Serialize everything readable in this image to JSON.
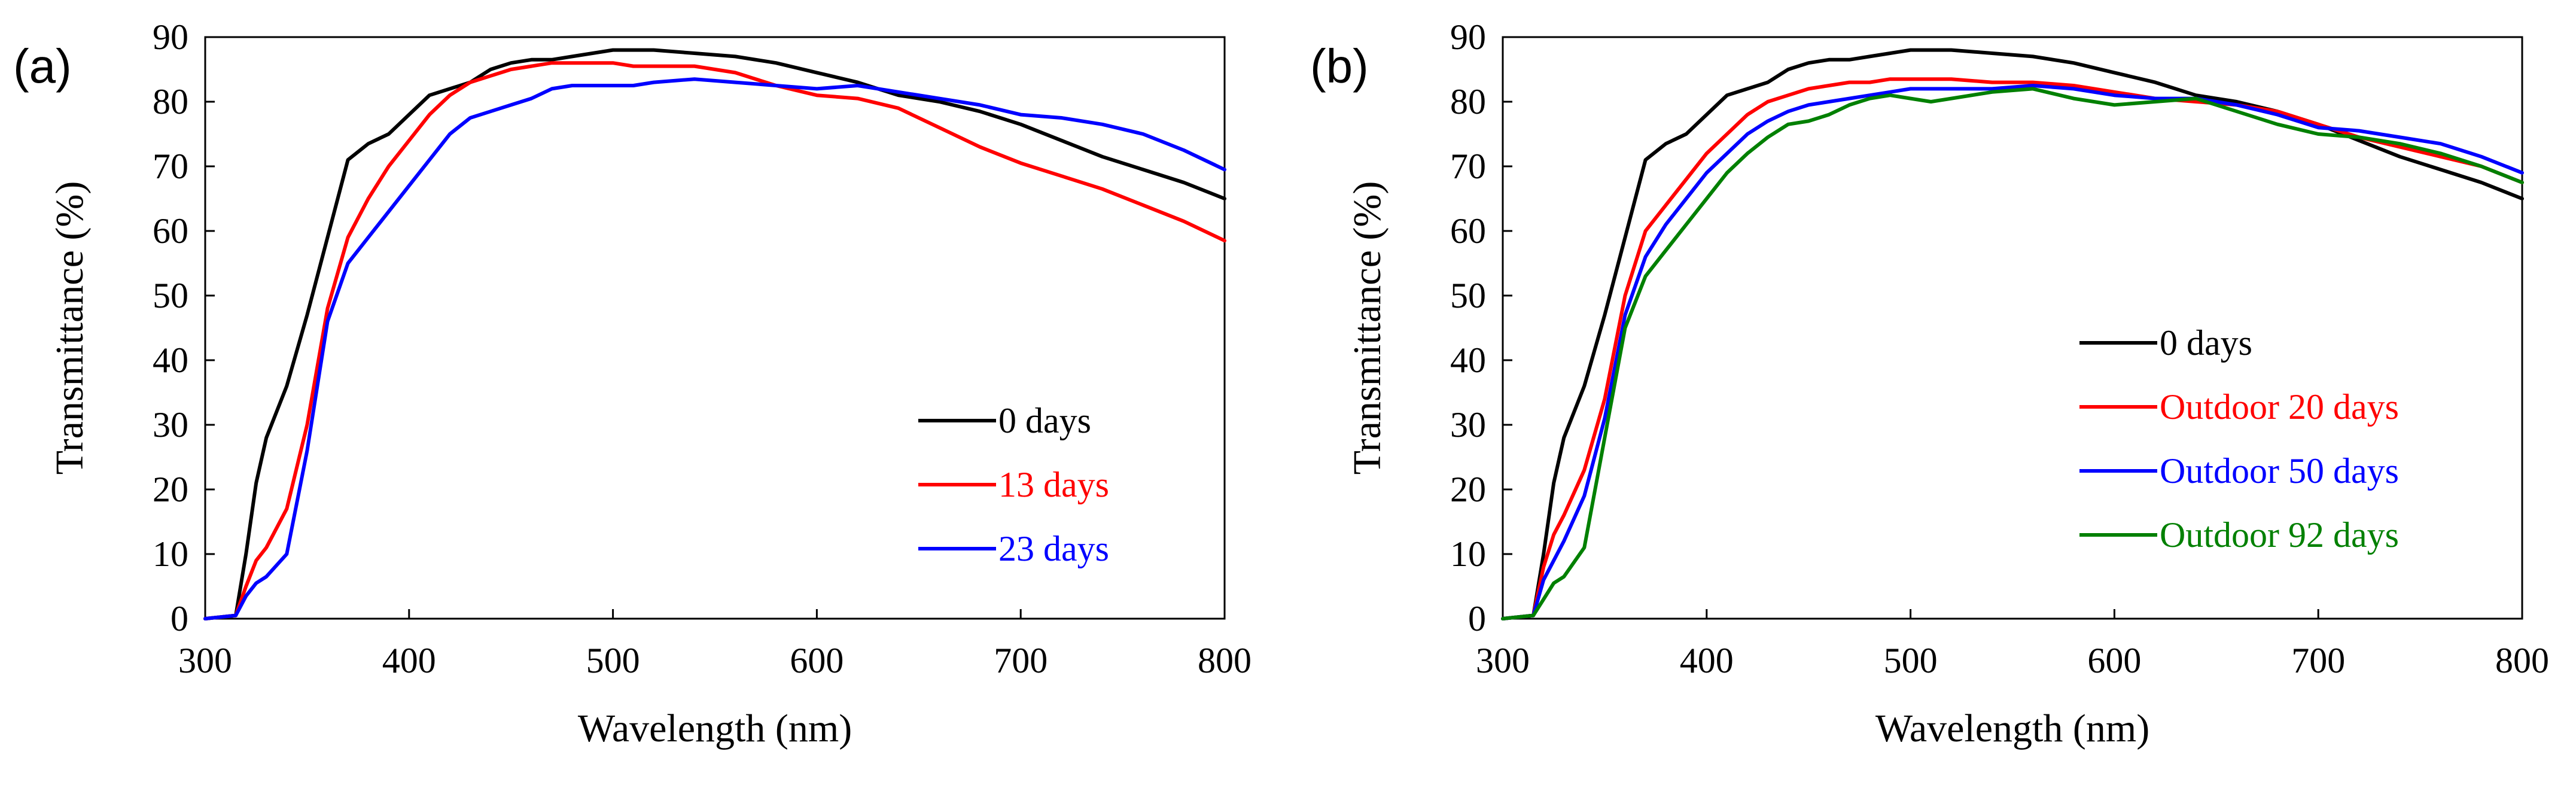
{
  "chart_data": [
    {
      "type": "line",
      "panel_label": "(a)",
      "title": "",
      "xlabel": "Wavelength  (nm)",
      "ylabel": "Transmittance  (%)",
      "xlim": [
        300,
        800
      ],
      "ylim": [
        0,
        90
      ],
      "xticks": [
        300,
        400,
        500,
        600,
        700,
        800
      ],
      "yticks": [
        0,
        10,
        20,
        30,
        40,
        50,
        60,
        70,
        80,
        90
      ],
      "grid": false,
      "legend_position": "bottom-right",
      "series": [
        {
          "name": "0 days",
          "color": "#000000",
          "x": [
            300,
            315,
            320,
            325,
            330,
            340,
            350,
            360,
            370,
            380,
            390,
            400,
            410,
            420,
            430,
            440,
            450,
            460,
            470,
            480,
            490,
            500,
            510,
            520,
            540,
            560,
            580,
            600,
            620,
            640,
            660,
            680,
            700,
            720,
            740,
            760,
            780,
            800
          ],
          "y": [
            0,
            0.5,
            10,
            21,
            28,
            36,
            47,
            59,
            71,
            73.5,
            75,
            78,
            81,
            82,
            83,
            85,
            86,
            86.5,
            86.5,
            87,
            87.5,
            88,
            88,
            88,
            87.5,
            87,
            86,
            84.5,
            83,
            81,
            80,
            78.5,
            76.5,
            74,
            71.5,
            69.5,
            67.5,
            65
          ]
        },
        {
          "name": "13 days",
          "color": "#ff0000",
          "x": [
            300,
            315,
            320,
            325,
            330,
            340,
            350,
            360,
            370,
            380,
            390,
            400,
            410,
            420,
            430,
            440,
            450,
            460,
            470,
            480,
            490,
            500,
            510,
            520,
            540,
            560,
            580,
            600,
            620,
            640,
            660,
            680,
            700,
            720,
            740,
            760,
            780,
            800
          ],
          "y": [
            0,
            0.5,
            5,
            9,
            11,
            17,
            30,
            48,
            59,
            65,
            70,
            74,
            78,
            81,
            83,
            84,
            85,
            85.5,
            86,
            86,
            86,
            86,
            85.5,
            85.5,
            85.5,
            84.5,
            82.5,
            81,
            80.5,
            79,
            76,
            73,
            70.5,
            68.5,
            66.5,
            64,
            61.5,
            58.5
          ]
        },
        {
          "name": "23 days",
          "color": "#0000ff",
          "x": [
            300,
            315,
            320,
            325,
            330,
            340,
            350,
            360,
            370,
            380,
            390,
            400,
            410,
            420,
            430,
            440,
            450,
            460,
            470,
            480,
            490,
            500,
            510,
            520,
            540,
            560,
            580,
            600,
            620,
            640,
            660,
            680,
            700,
            720,
            740,
            760,
            780,
            800
          ],
          "y": [
            0,
            0.5,
            3.5,
            5.5,
            6.5,
            10,
            26,
            46,
            55,
            59,
            63,
            67,
            71,
            75,
            77.5,
            78.5,
            79.5,
            80.5,
            82,
            82.5,
            82.5,
            82.5,
            82.5,
            83,
            83.5,
            83,
            82.5,
            82,
            82.5,
            81.5,
            80.5,
            79.5,
            78,
            77.5,
            76.5,
            75,
            72.5,
            69.5
          ]
        }
      ]
    },
    {
      "type": "line",
      "panel_label": "(b)",
      "title": "",
      "xlabel": "Wavelength  (nm)",
      "ylabel": "Transmittance  (%)",
      "xlim": [
        300,
        800
      ],
      "ylim": [
        0,
        90
      ],
      "xticks": [
        300,
        400,
        500,
        600,
        700,
        800
      ],
      "yticks": [
        0,
        10,
        20,
        30,
        40,
        50,
        60,
        70,
        80,
        90
      ],
      "grid": false,
      "legend_position": "bottom-right",
      "series": [
        {
          "name": "0 days",
          "color": "#000000",
          "x": [
            300,
            315,
            320,
            325,
            330,
            340,
            350,
            360,
            370,
            380,
            390,
            400,
            410,
            420,
            430,
            440,
            450,
            460,
            470,
            480,
            490,
            500,
            510,
            520,
            540,
            560,
            580,
            600,
            620,
            640,
            660,
            680,
            700,
            720,
            740,
            760,
            780,
            800
          ],
          "y": [
            0,
            0.5,
            10,
            21,
            28,
            36,
            47,
            59,
            71,
            73.5,
            75,
            78,
            81,
            82,
            83,
            85,
            86,
            86.5,
            86.5,
            87,
            87.5,
            88,
            88,
            88,
            87.5,
            87,
            86,
            84.5,
            83,
            81,
            80,
            78.5,
            76.5,
            74,
            71.5,
            69.5,
            67.5,
            65
          ]
        },
        {
          "name": "Outdoor 20 days",
          "color": "#ff0000",
          "x": [
            300,
            315,
            320,
            325,
            330,
            340,
            350,
            360,
            370,
            380,
            390,
            400,
            410,
            420,
            430,
            440,
            450,
            460,
            470,
            480,
            490,
            500,
            510,
            520,
            540,
            560,
            580,
            600,
            620,
            640,
            660,
            680,
            700,
            720,
            740,
            760,
            780,
            800
          ],
          "y": [
            0,
            0.5,
            8,
            13,
            16,
            23,
            34,
            50,
            60,
            64,
            68,
            72,
            75,
            78,
            80,
            81,
            82,
            82.5,
            83,
            83,
            83.5,
            83.5,
            83.5,
            83.5,
            83,
            83,
            82.5,
            81.5,
            80.5,
            80,
            79.5,
            78.5,
            76.5,
            74.5,
            73,
            71.5,
            70,
            67.5
          ]
        },
        {
          "name": "Outdoor 50 days",
          "color": "#0000ff",
          "x": [
            300,
            315,
            320,
            325,
            330,
            340,
            350,
            360,
            370,
            380,
            390,
            400,
            410,
            420,
            430,
            440,
            450,
            460,
            470,
            480,
            490,
            500,
            510,
            520,
            540,
            560,
            580,
            600,
            620,
            640,
            660,
            680,
            700,
            720,
            740,
            760,
            780,
            800
          ],
          "y": [
            0,
            0.5,
            6,
            9,
            12,
            19,
            31,
            47,
            56,
            61,
            65,
            69,
            72,
            75,
            77,
            78.5,
            79.5,
            80,
            80.5,
            81,
            81.5,
            82,
            82,
            82,
            82,
            82.5,
            82,
            81,
            80.5,
            80.5,
            79.5,
            78,
            76,
            75.5,
            74.5,
            73.5,
            71.5,
            69
          ]
        },
        {
          "name": "Outdoor 92 days",
          "color": "#008000",
          "x": [
            300,
            315,
            320,
            325,
            330,
            340,
            350,
            360,
            370,
            380,
            390,
            400,
            410,
            420,
            430,
            440,
            450,
            460,
            470,
            480,
            490,
            500,
            510,
            520,
            540,
            560,
            580,
            600,
            620,
            640,
            660,
            680,
            700,
            720,
            740,
            760,
            780,
            800
          ],
          "y": [
            0,
            0.5,
            3,
            5.5,
            6.5,
            11,
            28,
            45,
            53,
            57,
            61,
            65,
            69,
            72,
            74.5,
            76.5,
            77,
            78,
            79.5,
            80.5,
            81,
            80.5,
            80,
            80.5,
            81.5,
            82,
            80.5,
            79.5,
            80,
            80.5,
            78.5,
            76.5,
            75,
            74.5,
            73.5,
            72,
            70,
            67.5
          ]
        }
      ]
    }
  ]
}
